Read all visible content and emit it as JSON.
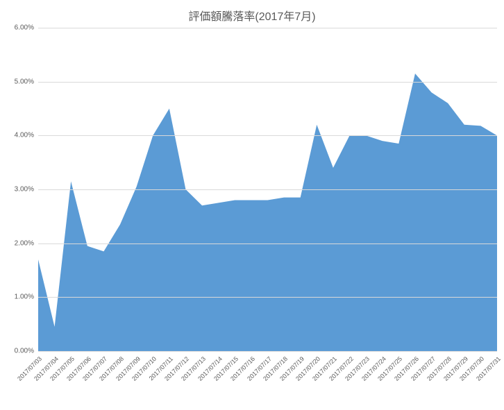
{
  "chart": {
    "type": "area",
    "title": "評価額騰落率(2017年7月)",
    "title_fontsize": 16,
    "title_color": "#595959",
    "background_color": "#ffffff",
    "grid_color": "#d9d9d9",
    "axis_label_color": "#595959",
    "axis_label_fontsize": 10,
    "x_tick_rotation_deg": -45,
    "area_fill_color": "#5b9bd5",
    "area_fill_opacity": 1.0,
    "ylim": [
      0,
      6
    ],
    "ytick_step": 1,
    "y_tick_format": "0.00%",
    "y_ticks": [
      "0.00%",
      "1.00%",
      "2.00%",
      "3.00%",
      "4.00%",
      "5.00%",
      "6.00%"
    ],
    "categories": [
      "2017/07/03",
      "2017/07/04",
      "2017/07/05",
      "2017/07/06",
      "2017/07/07",
      "2017/07/08",
      "2017/07/09",
      "2017/07/10",
      "2017/07/11",
      "2017/07/12",
      "2017/07/13",
      "2017/07/14",
      "2017/07/15",
      "2017/07/16",
      "2017/07/17",
      "2017/07/18",
      "2017/07/19",
      "2017/07/20",
      "2017/07/21",
      "2017/07/22",
      "2017/07/23",
      "2017/07/24",
      "2017/07/25",
      "2017/07/26",
      "2017/07/27",
      "2017/07/28",
      "2017/07/29",
      "2017/07/30",
      "2017/07/31"
    ],
    "values": [
      1.7,
      0.45,
      3.15,
      1.95,
      1.85,
      2.35,
      3.05,
      4.0,
      4.5,
      3.0,
      2.7,
      2.75,
      2.8,
      2.8,
      2.8,
      2.85,
      2.85,
      4.2,
      3.4,
      4.0,
      4.0,
      3.9,
      3.85,
      5.15,
      4.8,
      4.6,
      4.2,
      4.18,
      4.0
    ]
  }
}
